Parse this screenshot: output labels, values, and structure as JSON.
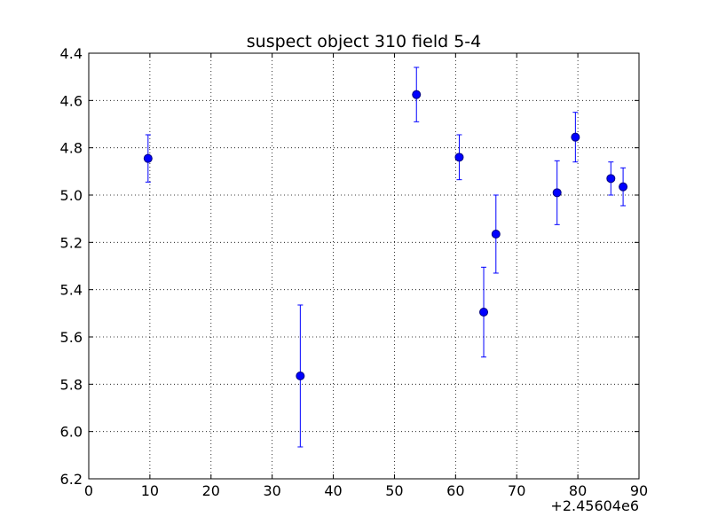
{
  "chart_data": {
    "type": "scatter",
    "title": "suspect object 310 field 5-4",
    "xlabel": "",
    "ylabel": "",
    "x_offset_label": "+2.45604e6",
    "xlim": [
      0,
      90
    ],
    "ylim": [
      6.2,
      4.4
    ],
    "y_inverted": true,
    "grid": true,
    "x_ticks": [
      0,
      10,
      20,
      30,
      40,
      50,
      60,
      70,
      80,
      90
    ],
    "y_ticks": [
      4.4,
      4.6,
      4.8,
      5.0,
      5.2,
      5.4,
      5.6,
      5.8,
      6.0,
      6.2
    ],
    "x_tick_labels": [
      "0",
      "10",
      "20",
      "30",
      "40",
      "50",
      "60",
      "70",
      "80",
      "90"
    ],
    "y_tick_labels": [
      "4.4",
      "4.6",
      "4.8",
      "5.0",
      "5.2",
      "5.4",
      "5.6",
      "5.8",
      "6.0",
      "6.2"
    ],
    "points": [
      {
        "x": 9.7,
        "y": 4.845,
        "err": 0.1
      },
      {
        "x": 34.6,
        "y": 5.765,
        "err": 0.3
      },
      {
        "x": 53.6,
        "y": 4.575,
        "err": 0.115
      },
      {
        "x": 60.6,
        "y": 4.84,
        "err": 0.095
      },
      {
        "x": 64.6,
        "y": 5.495,
        "err": 0.19
      },
      {
        "x": 66.6,
        "y": 5.165,
        "err": 0.165
      },
      {
        "x": 76.6,
        "y": 4.99,
        "err": 0.135
      },
      {
        "x": 79.6,
        "y": 4.755,
        "err": 0.105
      },
      {
        "x": 85.4,
        "y": 4.93,
        "err": 0.07
      },
      {
        "x": 87.4,
        "y": 4.965,
        "err": 0.08
      }
    ],
    "marker_color": "#0000ff",
    "marker_edge_color": "#000080",
    "errorbar_color": "#0000ff"
  }
}
